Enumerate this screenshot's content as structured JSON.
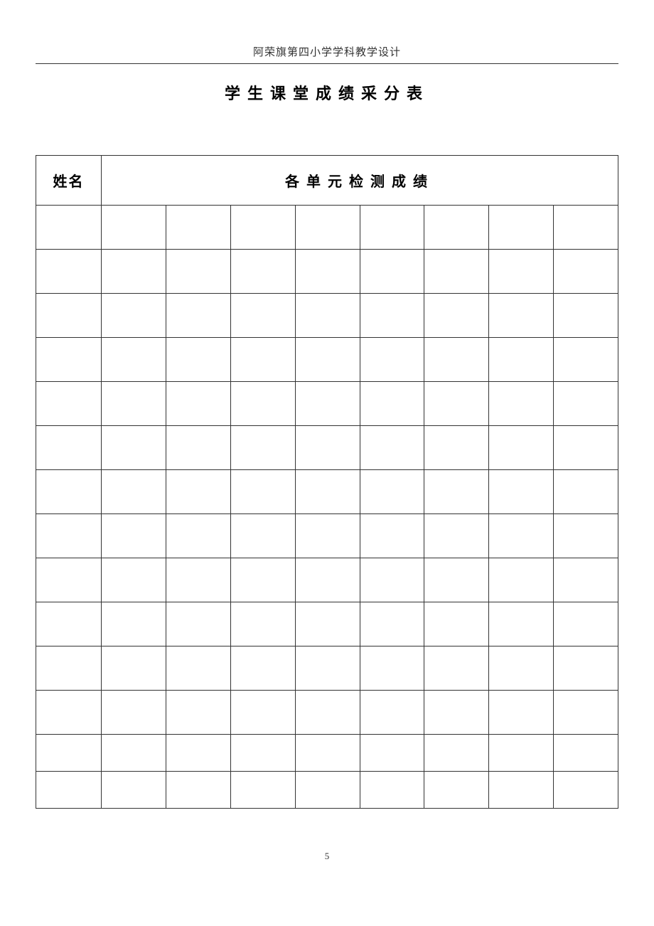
{
  "header_text": "阿荣旗第四小学学科教学设计",
  "title": "学生课堂成绩采分表",
  "page_number": "5",
  "table": {
    "columns": {
      "name_header": "姓名",
      "scores_header": "各单元检测成绩",
      "name_col_width": 92,
      "score_cols": 8
    },
    "rows": [
      {
        "height": 62,
        "cells": [
          "",
          "",
          "",
          "",
          "",
          "",
          "",
          "",
          ""
        ]
      },
      {
        "height": 62,
        "cells": [
          "",
          "",
          "",
          "",
          "",
          "",
          "",
          "",
          ""
        ]
      },
      {
        "height": 62,
        "cells": [
          "",
          "",
          "",
          "",
          "",
          "",
          "",
          "",
          ""
        ]
      },
      {
        "height": 62,
        "cells": [
          "",
          "",
          "",
          "",
          "",
          "",
          "",
          "",
          ""
        ]
      },
      {
        "height": 62,
        "cells": [
          "",
          "",
          "",
          "",
          "",
          "",
          "",
          "",
          ""
        ]
      },
      {
        "height": 62,
        "cells": [
          "",
          "",
          "",
          "",
          "",
          "",
          "",
          "",
          ""
        ]
      },
      {
        "height": 62,
        "cells": [
          "",
          "",
          "",
          "",
          "",
          "",
          "",
          "",
          ""
        ]
      },
      {
        "height": 62,
        "cells": [
          "",
          "",
          "",
          "",
          "",
          "",
          "",
          "",
          ""
        ]
      },
      {
        "height": 62,
        "cells": [
          "",
          "",
          "",
          "",
          "",
          "",
          "",
          "",
          ""
        ]
      },
      {
        "height": 62,
        "cells": [
          "",
          "",
          "",
          "",
          "",
          "",
          "",
          "",
          ""
        ]
      },
      {
        "height": 62,
        "cells": [
          "",
          "",
          "",
          "",
          "",
          "",
          "",
          "",
          ""
        ]
      },
      {
        "height": 62,
        "cells": [
          "",
          "",
          "",
          "",
          "",
          "",
          "",
          "",
          ""
        ]
      },
      {
        "height": 52,
        "cells": [
          "",
          "",
          "",
          "",
          "",
          "",
          "",
          "",
          ""
        ]
      },
      {
        "height": 52,
        "cells": [
          "",
          "",
          "",
          "",
          "",
          "",
          "",
          "",
          ""
        ]
      }
    ],
    "border_color": "#333333",
    "background_color": "#ffffff"
  },
  "colors": {
    "page_bg": "#ffffff",
    "text": "#333333",
    "title_text": "#000000",
    "border": "#333333"
  },
  "typography": {
    "header_fontsize": 15,
    "title_fontsize": 22,
    "table_header_fontsize": 20,
    "page_number_fontsize": 13,
    "font_family": "SimSun"
  }
}
